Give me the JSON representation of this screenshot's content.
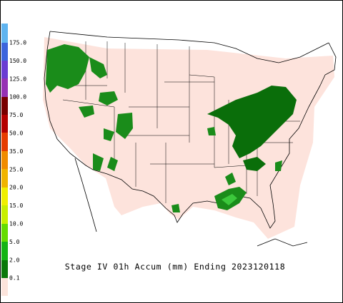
{
  "title": "Stage IV 01h Accum (mm) Ending 2023120118",
  "legend": {
    "labels": [
      "175.0",
      "150.0",
      "125.0",
      "100.0",
      "75.0",
      "50.0",
      "35.0",
      "25.0",
      "20.0",
      "15.0",
      "10.0",
      "5.0",
      "2.0",
      "0.1"
    ]
  }
}
